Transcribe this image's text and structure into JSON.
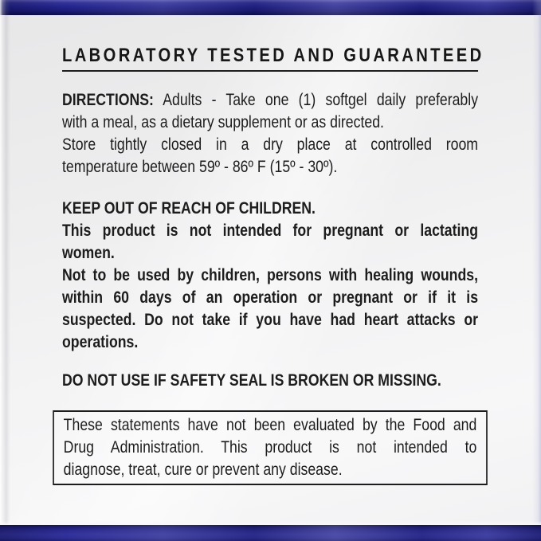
{
  "header": {
    "title": "LABORATORY TESTED AND GUARANTEED"
  },
  "directions": {
    "label": "DIRECTIONS:",
    "first_line": "Adults - Take one (1) softgel daily preferably",
    "intro_rest_lines": [
      "with a meal, as a dietary supplement or as directed."
    ],
    "storage_lines": [
      "Store tightly closed in a dry place at controlled room",
      "temperature between 59º - 86º F (15º - 30º)."
    ]
  },
  "warnings": {
    "keep_out_lines": [
      "KEEP OUT OF REACH OF CHILDREN."
    ],
    "pregnant_lines": [
      "This product is not intended for pregnant or lactating",
      "women."
    ],
    "children_lines": [
      "Not to be used by children, persons with healing wounds,",
      "within 60 days of an operation or pregnant or if it is",
      "suspected. Do not take if you have had heart attacks or",
      "operations."
    ]
  },
  "seal_warning": "DO NOT USE IF SAFETY SEAL IS BROKEN OR MISSING.",
  "fda_disclaimer_lines": [
    "These statements have not been evaluated by the Food and",
    "Drug Administration. This product is not intended to",
    "diagnose, treat, cure or prevent any disease."
  ],
  "colors": {
    "bar_navy": "#23238c",
    "text": "#1d1d1d",
    "background": "#f0f0f1"
  }
}
